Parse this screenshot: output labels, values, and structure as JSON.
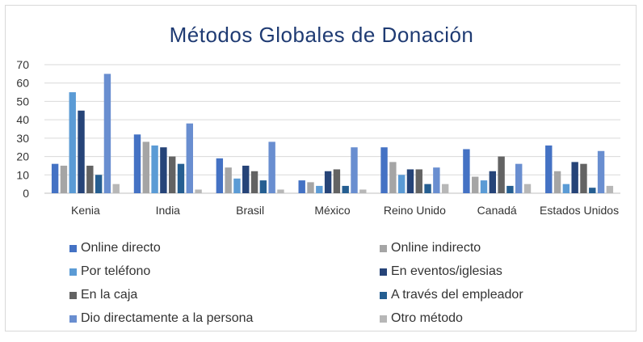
{
  "chart_data": {
    "type": "bar",
    "title": "Métodos Globales de Donación",
    "xlabel": "",
    "ylabel": "",
    "ylim": [
      0,
      70
    ],
    "yticks": [
      0,
      10,
      20,
      30,
      40,
      50,
      60,
      70
    ],
    "grid": true,
    "legend_position": "bottom",
    "categories": [
      "Kenia",
      "India",
      "Brasil",
      "México",
      "Reino Unido",
      "Canadá",
      "Estados Unidos"
    ],
    "series": [
      {
        "name": "Online directo",
        "color": "#4472c4",
        "values": [
          16,
          32,
          19,
          7,
          25,
          24,
          26
        ]
      },
      {
        "name": "Online indirecto",
        "color": "#a5a5a5",
        "values": [
          15,
          28,
          14,
          6,
          17,
          9,
          12
        ]
      },
      {
        "name": "Por teléfono",
        "color": "#5b9bd5",
        "values": [
          55,
          26,
          8,
          4,
          10,
          7,
          5
        ]
      },
      {
        "name": "En eventos/iglesias",
        "color": "#264478",
        "values": [
          45,
          25,
          15,
          12,
          13,
          12,
          17
        ]
      },
      {
        "name": "En la caja",
        "color": "#636363",
        "values": [
          15,
          20,
          12,
          13,
          13,
          20,
          16
        ]
      },
      {
        "name": "A través del empleador",
        "color": "#255e91",
        "values": [
          10,
          16,
          7,
          4,
          5,
          4,
          3
        ]
      },
      {
        "name": "Dio directamente a la persona",
        "color": "#698ed0",
        "values": [
          65,
          38,
          28,
          25,
          14,
          16,
          23
        ]
      },
      {
        "name": "Otro método",
        "color": "#b7b7b7",
        "values": [
          5,
          2,
          2,
          2,
          5,
          5,
          4
        ]
      }
    ]
  }
}
